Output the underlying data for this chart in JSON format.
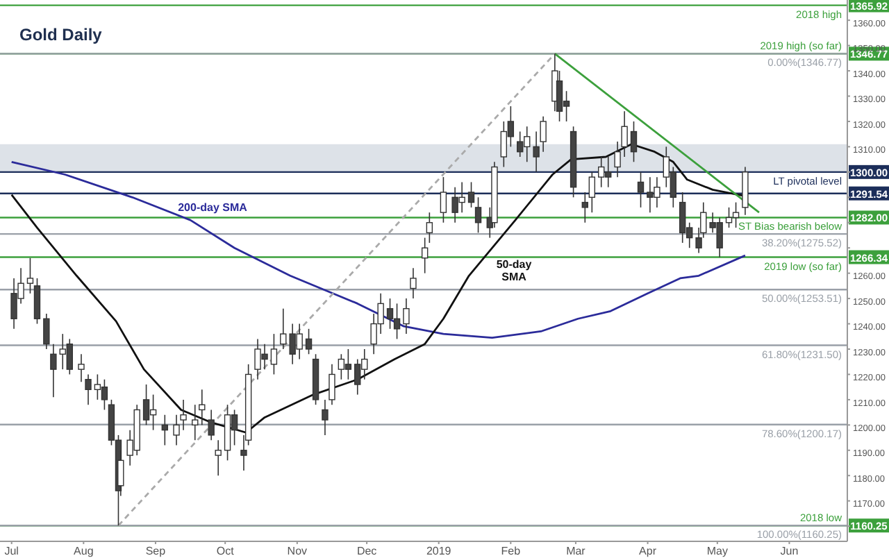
{
  "chart_data": {
    "type": "candlestick",
    "title": "Gold Daily",
    "x": [
      "2018-07-02",
      "2018-07-05",
      "2018-07-09",
      "2018-07-12",
      "2018-07-16",
      "2018-07-19",
      "2018-07-23",
      "2018-07-26",
      "2018-07-31",
      "2018-08-03",
      "2018-08-07",
      "2018-08-10",
      "2018-08-13",
      "2018-08-16",
      "2018-08-17",
      "2018-08-21",
      "2018-08-24",
      "2018-08-28",
      "2018-08-31",
      "2018-09-05",
      "2018-09-10",
      "2018-09-13",
      "2018-09-18",
      "2018-09-21",
      "2018-09-25",
      "2018-09-28",
      "2018-10-02",
      "2018-10-05",
      "2018-10-09",
      "2018-10-11",
      "2018-10-15",
      "2018-10-18",
      "2018-10-22",
      "2018-10-26",
      "2018-10-30",
      "2018-11-02",
      "2018-11-06",
      "2018-11-09",
      "2018-11-13",
      "2018-11-16",
      "2018-11-20",
      "2018-11-23",
      "2018-11-27",
      "2018-11-30",
      "2018-12-04",
      "2018-12-07",
      "2018-12-11",
      "2018-12-14",
      "2018-12-18",
      "2018-12-21",
      "2018-12-26",
      "2018-12-28",
      "2019-01-03",
      "2019-01-08",
      "2019-01-11",
      "2019-01-15",
      "2019-01-18",
      "2019-01-23",
      "2019-01-25",
      "2019-01-29",
      "2019-02-01",
      "2019-02-05",
      "2019-02-08",
      "2019-02-12",
      "2019-02-15",
      "2019-02-20",
      "2019-02-22",
      "2019-02-25",
      "2019-02-28",
      "2019-03-05",
      "2019-03-08",
      "2019-03-12",
      "2019-03-15",
      "2019-03-19",
      "2019-03-22",
      "2019-03-26",
      "2019-03-29",
      "2019-04-02",
      "2019-04-05",
      "2019-04-09",
      "2019-04-12",
      "2019-04-16",
      "2019-04-19",
      "2019-04-23",
      "2019-04-25",
      "2019-04-29",
      "2019-05-02",
      "2019-05-06",
      "2019-05-09",
      "2019-05-13"
    ],
    "ohlc": [
      [
        1252,
        1258,
        1238,
        1242
      ],
      [
        1250,
        1262,
        1248,
        1256
      ],
      [
        1256,
        1266,
        1252,
        1258
      ],
      [
        1255,
        1258,
        1240,
        1242
      ],
      [
        1242,
        1244,
        1230,
        1232
      ],
      [
        1228,
        1232,
        1211,
        1222
      ],
      [
        1228,
        1236,
        1222,
        1230
      ],
      [
        1232,
        1234,
        1220,
        1222
      ],
      [
        1222,
        1228,
        1217,
        1224
      ],
      [
        1218,
        1220,
        1208,
        1214
      ],
      [
        1214,
        1220,
        1210,
        1216
      ],
      [
        1215,
        1218,
        1206,
        1210
      ],
      [
        1208,
        1210,
        1192,
        1194
      ],
      [
        1194,
        1196,
        1160.25,
        1174
      ],
      [
        1176,
        1190,
        1172,
        1186
      ],
      [
        1188,
        1198,
        1184,
        1194
      ],
      [
        1190,
        1208,
        1188,
        1206
      ],
      [
        1210,
        1216,
        1200,
        1202
      ],
      [
        1204,
        1212,
        1198,
        1206
      ],
      [
        1200,
        1204,
        1192,
        1198
      ],
      [
        1196,
        1204,
        1192,
        1200
      ],
      [
        1202,
        1210,
        1198,
        1204
      ],
      [
        1200,
        1208,
        1194,
        1202
      ],
      [
        1206,
        1214,
        1200,
        1208
      ],
      [
        1202,
        1206,
        1194,
        1196
      ],
      [
        1188,
        1194,
        1180,
        1190
      ],
      [
        1190,
        1208,
        1186,
        1204
      ],
      [
        1204,
        1206,
        1192,
        1198
      ],
      [
        1190,
        1196,
        1182,
        1188
      ],
      [
        1194,
        1224,
        1192,
        1220
      ],
      [
        1222,
        1234,
        1218,
        1230
      ],
      [
        1228,
        1232,
        1222,
        1226
      ],
      [
        1224,
        1236,
        1220,
        1230
      ],
      [
        1232,
        1246,
        1230,
        1236
      ],
      [
        1236,
        1240,
        1224,
        1228
      ],
      [
        1230,
        1240,
        1226,
        1236
      ],
      [
        1234,
        1238,
        1228,
        1230
      ],
      [
        1226,
        1228,
        1208,
        1210
      ],
      [
        1206,
        1210,
        1196,
        1202
      ],
      [
        1210,
        1224,
        1208,
        1220
      ],
      [
        1222,
        1228,
        1218,
        1226
      ],
      [
        1224,
        1230,
        1218,
        1222
      ],
      [
        1224,
        1226,
        1212,
        1216
      ],
      [
        1222,
        1230,
        1218,
        1226
      ],
      [
        1232,
        1244,
        1228,
        1240
      ],
      [
        1240,
        1252,
        1236,
        1248
      ],
      [
        1246,
        1250,
        1238,
        1242
      ],
      [
        1242,
        1248,
        1234,
        1238
      ],
      [
        1240,
        1250,
        1236,
        1246
      ],
      [
        1254,
        1262,
        1250,
        1258
      ],
      [
        1266,
        1274,
        1260,
        1270
      ],
      [
        1276,
        1284,
        1272,
        1280
      ],
      [
        1284,
        1298,
        1280,
        1292
      ],
      [
        1290,
        1294,
        1280,
        1284
      ],
      [
        1288,
        1296,
        1284,
        1290
      ],
      [
        1292,
        1296,
        1286,
        1288
      ],
      [
        1286,
        1290,
        1276,
        1280
      ],
      [
        1282,
        1286,
        1274,
        1278
      ],
      [
        1280,
        1304,
        1278,
        1302
      ],
      [
        1306,
        1320,
        1302,
        1316
      ],
      [
        1320,
        1326,
        1310,
        1314
      ],
      [
        1312,
        1316,
        1306,
        1308
      ],
      [
        1310,
        1318,
        1304,
        1314
      ],
      [
        1310,
        1316,
        1300,
        1306
      ],
      [
        1312,
        1322,
        1308,
        1320
      ],
      [
        1328,
        1346.77,
        1324,
        1340
      ],
      [
        1336,
        1340,
        1320,
        1324
      ],
      [
        1328,
        1332,
        1320,
        1326
      ],
      [
        1316,
        1318,
        1290,
        1294
      ],
      [
        1288,
        1292,
        1280,
        1286
      ],
      [
        1290,
        1300,
        1284,
        1298
      ],
      [
        1298,
        1306,
        1294,
        1302
      ],
      [
        1300,
        1306,
        1294,
        1298
      ],
      [
        1302,
        1312,
        1298,
        1308
      ],
      [
        1310,
        1324,
        1306,
        1318
      ],
      [
        1316,
        1320,
        1304,
        1308
      ],
      [
        1296,
        1300,
        1286,
        1292
      ],
      [
        1292,
        1298,
        1284,
        1290
      ],
      [
        1290,
        1298,
        1286,
        1294
      ],
      [
        1298,
        1310,
        1294,
        1306
      ],
      [
        1300,
        1302,
        1286,
        1290
      ],
      [
        1288,
        1292,
        1272,
        1276
      ],
      [
        1278,
        1280,
        1270,
        1274
      ],
      [
        1274,
        1278,
        1268,
        1270
      ],
      [
        1276,
        1288,
        1274,
        1284
      ],
      [
        1280,
        1284,
        1276,
        1278
      ],
      [
        1280,
        1282,
        1266.34,
        1270
      ],
      [
        1280,
        1286,
        1278,
        1282
      ],
      [
        1282,
        1288,
        1278,
        1284
      ],
      [
        1286,
        1302,
        1283,
        1300
      ]
    ],
    "series": [
      {
        "type": "line",
        "color": "#2b2b9a",
        "x": [
          "2018-07-01",
          "2018-07-24",
          "2018-08-22",
          "2018-09-16",
          "2018-10-05",
          "2018-10-29",
          "2018-11-27",
          "2018-12-17",
          "2019-01-03",
          "2019-01-24",
          "2019-02-14",
          "2019-03-02",
          "2019-03-16",
          "2019-04-01",
          "2019-04-15",
          "2019-04-23",
          "2019-05-13"
        ],
        "values": [
          1304,
          1299,
          1290,
          1281,
          1270,
          1259,
          1248,
          1239,
          1236,
          1234.5,
          1237,
          1242,
          1245,
          1252,
          1258,
          1259,
          1267
        ]
      },
      {
        "type": "line",
        "color": "#111111",
        "x": [
          "2018-07-01",
          "2018-07-12",
          "2018-07-29",
          "2018-08-15",
          "2018-08-27",
          "2018-09-12",
          "2018-09-25",
          "2018-10-10",
          "2018-10-18",
          "2018-11-08",
          "2018-11-27",
          "2018-12-13",
          "2018-12-26",
          "2019-01-03",
          "2019-01-14",
          "2019-02-03",
          "2019-02-19",
          "2019-02-27",
          "2019-03-14",
          "2019-03-25",
          "2019-04-04",
          "2019-04-12",
          "2019-04-18",
          "2019-04-29",
          "2019-05-10",
          "2019-05-13"
        ],
        "values": [
          1291,
          1278,
          1259,
          1241,
          1222,
          1206,
          1201,
          1197,
          1203,
          1212,
          1218,
          1226,
          1232,
          1242,
          1259,
          1281,
          1299,
          1305,
          1306,
          1311,
          1308,
          1304,
          1297,
          1293,
          1291,
          1290.5
        ]
      },
      {
        "type": "line",
        "color": "#3ca03c",
        "x": [
          "2019-02-20",
          "2019-05-19"
        ],
        "values": [
          1346.77,
          1284
        ]
      },
      {
        "type": "line",
        "color": "#aaaaaa",
        "line_style": "dashed",
        "x": [
          "2018-08-16",
          "2019-02-20"
        ],
        "values": [
          1160.25,
          1346.77
        ]
      }
    ],
    "xlim": [
      "2018-06-26",
      "2019-06-26"
    ],
    "xticks": [
      {
        "value": "2018-07-01",
        "label": "Jul"
      },
      {
        "value": "2018-08-01",
        "label": "Aug"
      },
      {
        "value": "2018-09-01",
        "label": "Sep"
      },
      {
        "value": "2018-10-01",
        "label": "Oct"
      },
      {
        "value": "2018-11-01",
        "label": "Nov"
      },
      {
        "value": "2018-12-01",
        "label": "Dec"
      },
      {
        "value": "2019-01-01",
        "label": "2019"
      },
      {
        "value": "2019-02-01",
        "label": "Feb"
      },
      {
        "value": "2019-03-01",
        "label": "Mar"
      },
      {
        "value": "2019-04-01",
        "label": "Apr"
      },
      {
        "value": "2019-05-01",
        "label": "May"
      },
      {
        "value": "2019-06-01",
        "label": "Jun"
      }
    ],
    "ylim": [
      1154,
      1368
    ],
    "yticks": [
      {
        "value": 1160,
        "label": null
      },
      {
        "value": 1170,
        "label": "1170.00"
      },
      {
        "value": 1180,
        "label": "1180.00"
      },
      {
        "value": 1190,
        "label": "1190.00"
      },
      {
        "value": 1200,
        "label": "1200.00"
      },
      {
        "value": 1210,
        "label": "1210.00"
      },
      {
        "value": 1220,
        "label": "1220.00"
      },
      {
        "value": 1230,
        "label": "1230.00"
      },
      {
        "value": 1240,
        "label": "1240.00"
      },
      {
        "value": 1250,
        "label": "1250.00"
      },
      {
        "value": 1260,
        "label": "1260.00"
      },
      {
        "value": 1270,
        "label": null
      },
      {
        "value": 1280,
        "label": null
      },
      {
        "value": 1290,
        "label": null
      },
      {
        "value": 1300,
        "label": null
      },
      {
        "value": 1310,
        "label": "1310.00"
      },
      {
        "value": 1320,
        "label": "1320.00"
      },
      {
        "value": 1330,
        "label": "1330.00"
      },
      {
        "value": 1340,
        "label": "1340.00"
      },
      {
        "value": 1350,
        "label": "1350.00"
      },
      {
        "value": 1360,
        "label": "1360.00"
      }
    ],
    "bands": [
      {
        "axis": "y",
        "from": 1300,
        "to": 1311,
        "color": "#dde2e8"
      }
    ],
    "ref_lines": [
      {
        "axis": "y",
        "value": 1365.92,
        "label": "2018 high",
        "color": "#3ca03c"
      },
      {
        "axis": "y",
        "value": 1346.77,
        "label": "2019 high (so far)",
        "color": "#3ca03c"
      },
      {
        "axis": "y",
        "value": 1346.77,
        "label": "0.00%(1346.77)",
        "color": "#9aa0a8"
      },
      {
        "axis": "y",
        "value": 1300,
        "label": "LT pivotal level",
        "color": "#1c2e5a"
      },
      {
        "axis": "y",
        "value": 1291.54,
        "color": "#1c2e5a"
      },
      {
        "axis": "y",
        "value": 1282,
        "label": "ST Bias bearish below",
        "color": "#3ca03c"
      },
      {
        "axis": "y",
        "value": 1275.52,
        "label": "38.20%(1275.52)",
        "color": "#9aa0a8"
      },
      {
        "axis": "y",
        "value": 1266.34,
        "label": "2019 low (so far)",
        "color": "#3ca03c"
      },
      {
        "axis": "y",
        "value": 1253.51,
        "label": "50.00%(1253.51)",
        "color": "#9aa0a8"
      },
      {
        "axis": "y",
        "value": 1231.5,
        "label": "61.80%(1231.50)",
        "color": "#9aa0a8"
      },
      {
        "axis": "y",
        "value": 1200.17,
        "label": "78.60%(1200.17)",
        "color": "#9aa0a8"
      },
      {
        "axis": "y",
        "value": 1160.25,
        "label": "2018 low",
        "color": "#3ca03c"
      },
      {
        "axis": "y",
        "value": 1160.25,
        "label": "100.00%(1160.25)",
        "color": "#9aa0a8"
      }
    ],
    "annotations": [
      "200-day SMA",
      "50-day SMA",
      {
        "text": "1365.92",
        "y": 1365.92
      },
      {
        "text": "1346.77",
        "y": 1346.77
      },
      {
        "text": "1300.00",
        "y": 1300
      },
      {
        "text": "1291.54",
        "y": 1291.54
      },
      {
        "text": "1282.00",
        "y": 1282
      },
      {
        "text": "1266.34",
        "y": 1266.34
      },
      {
        "text": "1160.25",
        "y": 1160.25
      }
    ]
  }
}
